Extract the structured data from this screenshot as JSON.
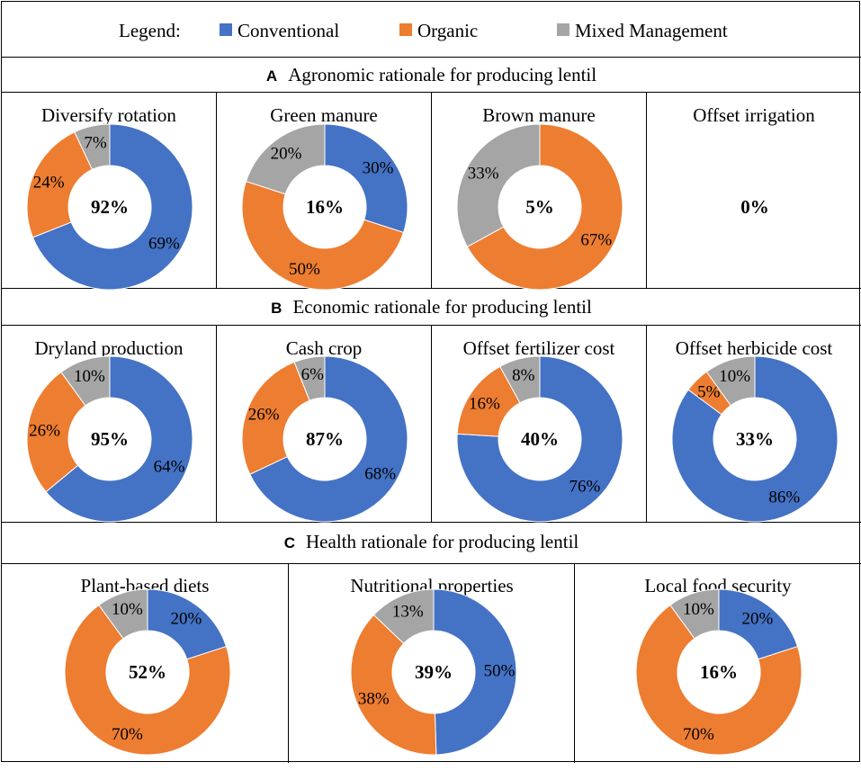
{
  "legend": {
    "title": "Legend:",
    "items": [
      {
        "label": "Conventional",
        "color": "#4472C4"
      },
      {
        "label": "Organic",
        "color": "#ED7D31"
      },
      {
        "label": "Mixed Management",
        "color": "#A5A5A5"
      }
    ]
  },
  "sections": [
    {
      "letter": "A",
      "title": "Agronomic rationale for producing lentil"
    },
    {
      "letter": "B",
      "title": "Economic rationale for producing lentil"
    },
    {
      "letter": "C",
      "title": "Health rationale for producing lentil"
    }
  ],
  "chart_data": [
    {
      "type": "pie",
      "subtype": "donut",
      "section": "A",
      "title": "Diversify rotation",
      "center_label": "92%",
      "series": [
        {
          "name": "Conventional",
          "value": 69,
          "label": "69%"
        },
        {
          "name": "Organic",
          "value": 24,
          "label": "24%"
        },
        {
          "name": "Mixed Management",
          "value": 7,
          "label": "7%"
        }
      ]
    },
    {
      "type": "pie",
      "subtype": "donut",
      "section": "A",
      "title": "Green manure",
      "center_label": "16%",
      "series": [
        {
          "name": "Conventional",
          "value": 30,
          "label": "30%"
        },
        {
          "name": "Organic",
          "value": 50,
          "label": "50%"
        },
        {
          "name": "Mixed Management",
          "value": 20,
          "label": "20%"
        }
      ]
    },
    {
      "type": "pie",
      "subtype": "donut",
      "section": "A",
      "title": "Brown manure",
      "center_label": "5%",
      "series": [
        {
          "name": "Conventional",
          "value": 0,
          "label": ""
        },
        {
          "name": "Organic",
          "value": 67,
          "label": "67%"
        },
        {
          "name": "Mixed Management",
          "value": 33,
          "label": "33%"
        }
      ]
    },
    {
      "type": "pie",
      "subtype": "donut",
      "section": "A",
      "title": "Offset irrigation",
      "center_label": "0%",
      "series": []
    },
    {
      "type": "pie",
      "subtype": "donut",
      "section": "B",
      "title": "Dryland production",
      "center_label": "95%",
      "series": [
        {
          "name": "Conventional",
          "value": 64,
          "label": "64%"
        },
        {
          "name": "Organic",
          "value": 26,
          "label": "26%"
        },
        {
          "name": "Mixed Management",
          "value": 10,
          "label": "10%"
        }
      ]
    },
    {
      "type": "pie",
      "subtype": "donut",
      "section": "B",
      "title": "Cash crop",
      "center_label": "87%",
      "series": [
        {
          "name": "Conventional",
          "value": 68,
          "label": "68%"
        },
        {
          "name": "Organic",
          "value": 26,
          "label": "26%"
        },
        {
          "name": "Mixed Management",
          "value": 6,
          "label": "6%"
        }
      ]
    },
    {
      "type": "pie",
      "subtype": "donut",
      "section": "B",
      "title": "Offset fertilizer cost",
      "center_label": "40%",
      "series": [
        {
          "name": "Conventional",
          "value": 76,
          "label": "76%"
        },
        {
          "name": "Organic",
          "value": 16,
          "label": "16%"
        },
        {
          "name": "Mixed Management",
          "value": 8,
          "label": "8%"
        }
      ]
    },
    {
      "type": "pie",
      "subtype": "donut",
      "section": "B",
      "title": "Offset herbicide cost",
      "center_label": "33%",
      "series": [
        {
          "name": "Conventional",
          "value": 86,
          "label": "86%"
        },
        {
          "name": "Organic",
          "value": 5,
          "label": "5%"
        },
        {
          "name": "Mixed Management",
          "value": 10,
          "label": "10%"
        }
      ]
    },
    {
      "type": "pie",
      "subtype": "donut",
      "section": "C",
      "title": "Plant-based diets",
      "center_label": "52%",
      "series": [
        {
          "name": "Conventional",
          "value": 20,
          "label": "20%"
        },
        {
          "name": "Organic",
          "value": 70,
          "label": "70%"
        },
        {
          "name": "Mixed Management",
          "value": 10,
          "label": "10%"
        }
      ]
    },
    {
      "type": "pie",
      "subtype": "donut",
      "section": "C",
      "title": "Nutritional properties",
      "center_label": "39%",
      "series": [
        {
          "name": "Conventional",
          "value": 50,
          "label": "50%"
        },
        {
          "name": "Organic",
          "value": 38,
          "label": "38%"
        },
        {
          "name": "Mixed Management",
          "value": 13,
          "label": "13%"
        }
      ]
    },
    {
      "type": "pie",
      "subtype": "donut",
      "section": "C",
      "title": "Local food security",
      "center_label": "16%",
      "series": [
        {
          "name": "Conventional",
          "value": 20,
          "label": "20%"
        },
        {
          "name": "Organic",
          "value": 70,
          "label": "70%"
        },
        {
          "name": "Mixed Management",
          "value": 10,
          "label": "10%"
        }
      ]
    }
  ]
}
